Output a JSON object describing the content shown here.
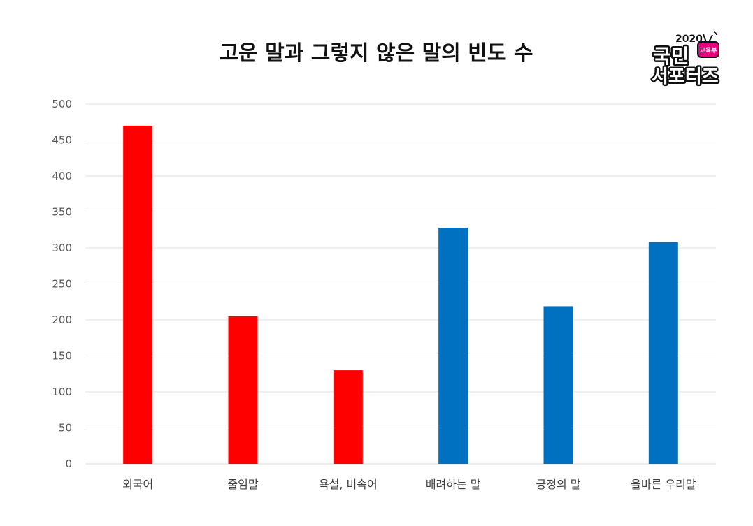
{
  "chart_data": {
    "type": "bar",
    "title": "고운 말과 그렇지 않은 말의 빈도 수",
    "categories": [
      "외국어",
      "줄임말",
      "욕설, 비속어",
      "배려하는 말",
      "긍정의 말",
      "올바른 우리말"
    ],
    "values": [
      470,
      205,
      130,
      328,
      219,
      308
    ],
    "bar_colors": [
      "#FF0000",
      "#FF0000",
      "#FF0000",
      "#0070C0",
      "#0070C0",
      "#0070C0"
    ],
    "ylim": [
      0,
      500
    ],
    "yticks": [
      0,
      50,
      100,
      150,
      200,
      250,
      300,
      350,
      400,
      450,
      500
    ],
    "grid": true,
    "xlabel": "",
    "ylabel": ""
  },
  "logo": {
    "year": "2020",
    "line1": "국민",
    "badge": "교육부",
    "line2": "서포터즈",
    "badge_color": "#E6007E"
  }
}
